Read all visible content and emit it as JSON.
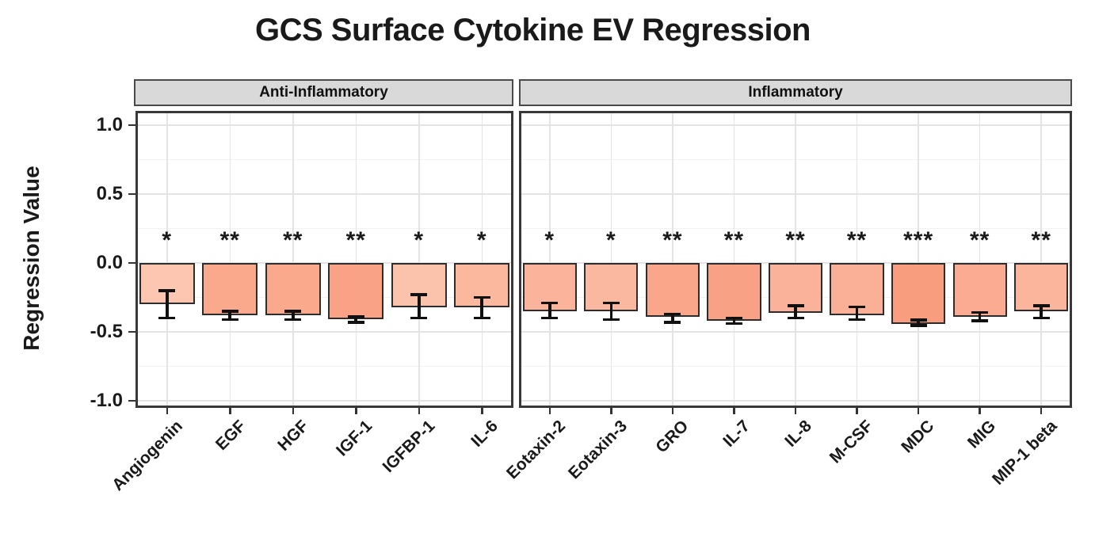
{
  "title": "GCS Surface Cytokine EV Regression",
  "colors": {
    "strip_fill": "#D9D9D9",
    "strip_border": "#4A4A4A",
    "panel_border": "#383838",
    "grid_major": "#E4E4E4",
    "grid_minor": "#F2F2F2",
    "bar_outline": "#2D2D2D",
    "errorbar": "#111111",
    "text": "#1A1A1A"
  },
  "chart_data": {
    "type": "bar",
    "title": "GCS Surface Cytokine EV Regression",
    "xlabel": "",
    "ylabel": "Regression Value",
    "ylim": [
      -1.05,
      1.1
    ],
    "grid": true,
    "legend": "none",
    "y_axis": {
      "label": "Regression Value",
      "ticks": [
        {
          "label": "1.0",
          "value": 1.0
        },
        {
          "label": "0.5",
          "value": 0.5
        },
        {
          "label": "0.0",
          "value": 0.0
        },
        {
          "label": "-0.5",
          "value": -0.5
        },
        {
          "label": "-1.0",
          "value": -1.0
        }
      ],
      "gridline_step_minor": 0.25,
      "gridline_step_major": 0.5
    },
    "facets": [
      {
        "label": "Anti-Inflammatory",
        "bars": [
          {
            "label": "Angiogenin",
            "value": -0.3,
            "err_low": -0.4,
            "err_high": -0.2,
            "sig": "*",
            "fill": "#FCC6B0"
          },
          {
            "label": "EGF",
            "value": -0.38,
            "err_low": -0.41,
            "err_high": -0.35,
            "sig": "**",
            "fill": "#FAA98D"
          },
          {
            "label": "HGF",
            "value": -0.38,
            "err_low": -0.41,
            "err_high": -0.35,
            "sig": "**",
            "fill": "#FAA98D"
          },
          {
            "label": "IGF-1",
            "value": -0.41,
            "err_low": -0.43,
            "err_high": -0.39,
            "sig": "**",
            "fill": "#F9A286"
          },
          {
            "label": "IGFBP-1",
            "value": -0.32,
            "err_low": -0.4,
            "err_high": -0.23,
            "sig": "*",
            "fill": "#FBC3AB"
          },
          {
            "label": "IL-6",
            "value": -0.32,
            "err_low": -0.4,
            "err_high": -0.25,
            "sig": "*",
            "fill": "#FBB89F"
          }
        ]
      },
      {
        "label": "Inflammatory",
        "bars": [
          {
            "label": "Eotaxin-2",
            "value": -0.35,
            "err_low": -0.4,
            "err_high": -0.29,
            "sig": "*",
            "fill": "#FBB49B"
          },
          {
            "label": "Eotaxin-3",
            "value": -0.35,
            "err_low": -0.41,
            "err_high": -0.29,
            "sig": "*",
            "fill": "#FBB8A0"
          },
          {
            "label": "GRO",
            "value": -0.39,
            "err_low": -0.43,
            "err_high": -0.37,
            "sig": "**",
            "fill": "#F9A68A"
          },
          {
            "label": "IL-7",
            "value": -0.42,
            "err_low": -0.44,
            "err_high": -0.4,
            "sig": "**",
            "fill": "#F9A184"
          },
          {
            "label": "IL-8",
            "value": -0.36,
            "err_low": -0.4,
            "err_high": -0.31,
            "sig": "**",
            "fill": "#FBB29A"
          },
          {
            "label": "M-CSF",
            "value": -0.38,
            "err_low": -0.41,
            "err_high": -0.32,
            "sig": "**",
            "fill": "#FAB097"
          },
          {
            "label": "MDC",
            "value": -0.44,
            "err_low": -0.455,
            "err_high": -0.415,
            "sig": "***",
            "fill": "#F89E7F"
          },
          {
            "label": "MIG",
            "value": -0.39,
            "err_low": -0.42,
            "err_high": -0.36,
            "sig": "**",
            "fill": "#FAAB91"
          },
          {
            "label": "MIP-1 beta",
            "value": -0.35,
            "err_low": -0.4,
            "err_high": -0.31,
            "sig": "**",
            "fill": "#FBB59D"
          }
        ]
      }
    ]
  }
}
